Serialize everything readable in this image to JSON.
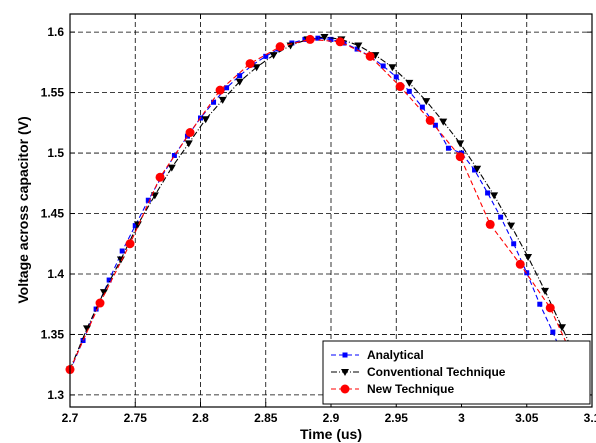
{
  "chart_data": {
    "type": "line",
    "title": "",
    "xlabel": "Time (us)",
    "ylabel": "Voltage across capacitor (V)",
    "xlim": [
      2.7,
      3.1
    ],
    "ylim": [
      1.29,
      1.615
    ],
    "xticks": [
      2.7,
      2.75,
      2.8,
      2.85,
      2.9,
      2.95,
      3.0,
      3.05,
      3.1
    ],
    "xtick_labels": [
      "2.7",
      "2.75",
      "2.8",
      "2.85",
      "2.9",
      "2.95",
      "3",
      "3.05",
      "3.1"
    ],
    "yticks": [
      1.3,
      1.35,
      1.4,
      1.45,
      1.5,
      1.55,
      1.6
    ],
    "ytick_labels": [
      "1.3",
      "1.35",
      "1.4",
      "1.45",
      "1.5",
      "1.55",
      "1.6"
    ],
    "grid": true,
    "legend_position": "bottom-right",
    "series": [
      {
        "name": "Analytical",
        "color": "#0000ff",
        "marker": "square",
        "linestyle": "dashed",
        "x": [
          2.7,
          2.71,
          2.72,
          2.73,
          2.74,
          2.75,
          2.76,
          2.77,
          2.78,
          2.79,
          2.8,
          2.81,
          2.82,
          2.83,
          2.84,
          2.85,
          2.86,
          2.87,
          2.88,
          2.89,
          2.9,
          2.91,
          2.92,
          2.93,
          2.94,
          2.95,
          2.96,
          2.97,
          2.98,
          2.99,
          3.0,
          3.01,
          3.02,
          3.03,
          3.04,
          3.05,
          3.06,
          3.07,
          3.08,
          3.09
        ],
        "y": [
          1.32,
          1.345,
          1.371,
          1.395,
          1.419,
          1.44,
          1.461,
          1.48,
          1.498,
          1.514,
          1.529,
          1.542,
          1.554,
          1.564,
          1.573,
          1.58,
          1.586,
          1.591,
          1.594,
          1.595,
          1.594,
          1.591,
          1.586,
          1.58,
          1.572,
          1.563,
          1.551,
          1.538,
          1.523,
          1.504,
          1.5,
          1.486,
          1.467,
          1.447,
          1.425,
          1.401,
          1.375,
          1.352,
          1.326,
          1.298
        ]
      },
      {
        "name": "Conventional Technique",
        "color": "#000000",
        "marker": "triangle-down",
        "linestyle": "dash-dot",
        "x": [
          2.7,
          2.713,
          2.726,
          2.739,
          2.752,
          2.765,
          2.778,
          2.791,
          2.804,
          2.817,
          2.83,
          2.843,
          2.856,
          2.869,
          2.882,
          2.895,
          2.908,
          2.921,
          2.934,
          2.947,
          2.96,
          2.973,
          2.986,
          2.999,
          3.012,
          3.025,
          3.038,
          3.051,
          3.064,
          3.077,
          3.09
        ],
        "y": [
          1.321,
          1.355,
          1.385,
          1.412,
          1.441,
          1.465,
          1.488,
          1.508,
          1.528,
          1.544,
          1.559,
          1.571,
          1.581,
          1.589,
          1.594,
          1.596,
          1.594,
          1.589,
          1.581,
          1.571,
          1.558,
          1.543,
          1.526,
          1.508,
          1.487,
          1.465,
          1.44,
          1.414,
          1.386,
          1.356,
          1.325
        ]
      },
      {
        "name": "New Technique",
        "color": "#ff0000",
        "marker": "circle",
        "linestyle": "dashed",
        "x": [
          2.7,
          2.723,
          2.746,
          2.769,
          2.792,
          2.815,
          2.838,
          2.861,
          2.884,
          2.907,
          2.93,
          2.953,
          2.976,
          2.999,
          3.022,
          3.045,
          3.068,
          3.091
        ],
        "y": [
          1.321,
          1.376,
          1.425,
          1.48,
          1.517,
          1.552,
          1.574,
          1.588,
          1.594,
          1.592,
          1.58,
          1.555,
          1.527,
          1.497,
          1.441,
          1.408,
          1.372,
          1.318
        ]
      }
    ]
  }
}
